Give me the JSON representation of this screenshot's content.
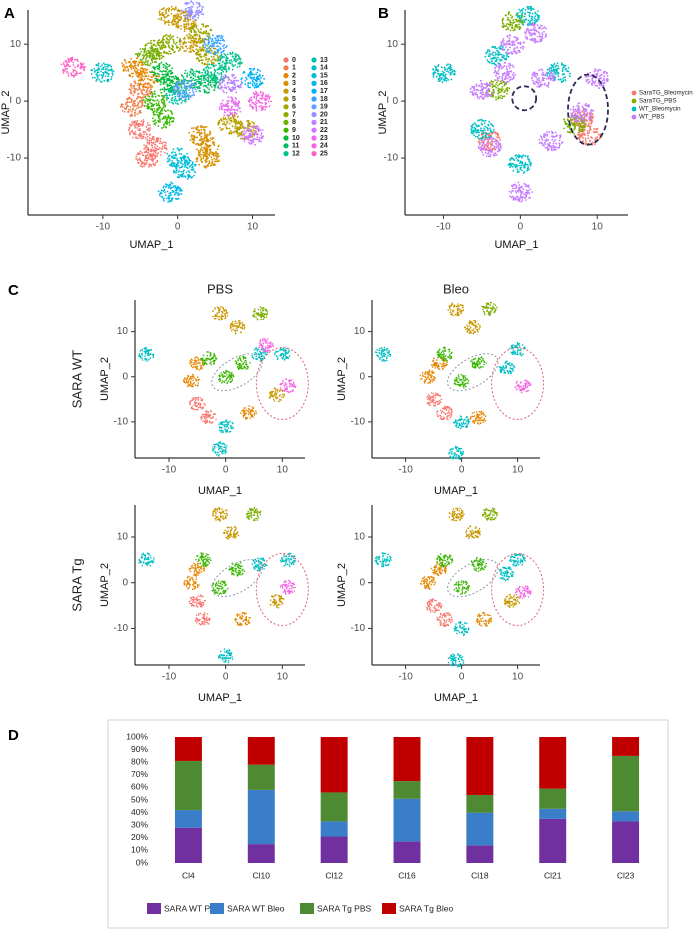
{
  "chart_data": [
    {
      "type": "scatter",
      "panel": "A",
      "xlabel": "UMAP_1",
      "ylabel": "UMAP_2",
      "xlim": [
        -20,
        13
      ],
      "ylim": [
        -20,
        16
      ],
      "xticks": [
        -10,
        0,
        10
      ],
      "yticks": [
        -10,
        0,
        10
      ],
      "legend": "right-columns",
      "series": [
        {
          "name": "0",
          "color": "#F8766D",
          "x": [
            -5,
            -3,
            -4
          ],
          "values": [
            -5,
            -8,
            -10
          ]
        },
        {
          "name": "1",
          "color": "#F07F49",
          "x": [
            -6,
            -5
          ],
          "values": [
            -1,
            2
          ]
        },
        {
          "name": "2",
          "color": "#E58700",
          "x": [
            -4,
            -6
          ],
          "values": [
            4,
            6
          ]
        },
        {
          "name": "3",
          "color": "#D89000",
          "x": [
            3,
            4,
            4
          ],
          "values": [
            -6,
            -8,
            -10
          ]
        },
        {
          "name": "4",
          "color": "#C99800",
          "x": [
            -1,
            1,
            2
          ],
          "values": [
            15,
            14,
            10
          ]
        },
        {
          "name": "5",
          "color": "#B79F00",
          "x": [
            7,
            9
          ],
          "values": [
            -4,
            -5
          ]
        },
        {
          "name": "6",
          "color": "#A3A500",
          "x": [
            3,
            4
          ],
          "values": [
            12,
            8
          ]
        },
        {
          "name": "7",
          "color": "#8BAB00",
          "x": [
            -3,
            -1
          ],
          "values": [
            9,
            10
          ]
        },
        {
          "name": "8",
          "color": "#6BB100",
          "x": [
            -4
          ],
          "values": [
            8
          ]
        },
        {
          "name": "9",
          "color": "#39B600",
          "x": [
            -3,
            -2
          ],
          "values": [
            0,
            -3
          ]
        },
        {
          "name": "10",
          "color": "#00BA38",
          "x": [
            -2,
            -1
          ],
          "values": [
            5,
            3
          ]
        },
        {
          "name": "11",
          "color": "#00BE67",
          "x": [
            2,
            4
          ],
          "values": [
            4,
            3
          ]
        },
        {
          "name": "12",
          "color": "#00C08B",
          "x": [
            5,
            7
          ],
          "values": [
            5,
            7
          ]
        },
        {
          "name": "13",
          "color": "#00C1A7",
          "x": [
            0
          ],
          "values": [
            1
          ]
        },
        {
          "name": "14",
          "color": "#00BFC4",
          "x": [
            -10
          ],
          "values": [
            5
          ]
        },
        {
          "name": "15",
          "color": "#00BCD8",
          "x": [
            0,
            1
          ],
          "values": [
            -10,
            -12
          ]
        },
        {
          "name": "16",
          "color": "#00B8E7",
          "x": [
            -1
          ],
          "values": [
            -16
          ]
        },
        {
          "name": "17",
          "color": "#00B0F6",
          "x": [
            10
          ],
          "values": [
            4
          ]
        },
        {
          "name": "18",
          "color": "#35A2FF",
          "x": [
            5
          ],
          "values": [
            10
          ]
        },
        {
          "name": "19",
          "color": "#619CFF",
          "x": [
            1
          ],
          "values": [
            2
          ]
        },
        {
          "name": "20",
          "color": "#9590FF",
          "x": [
            2
          ],
          "values": [
            16
          ]
        },
        {
          "name": "21",
          "color": "#B983FF",
          "x": [
            7
          ],
          "values": [
            3
          ]
        },
        {
          "name": "22",
          "color": "#D277FF",
          "x": [
            10
          ],
          "values": [
            -6
          ]
        },
        {
          "name": "23",
          "color": "#E76BF3",
          "x": [
            7
          ],
          "values": [
            -1
          ]
        },
        {
          "name": "24",
          "color": "#F564E3",
          "x": [
            11
          ],
          "values": [
            0
          ]
        },
        {
          "name": "25",
          "color": "#FF61C3",
          "x": [
            -14
          ],
          "values": [
            6
          ]
        }
      ]
    },
    {
      "type": "scatter",
      "panel": "B",
      "xlabel": "UMAP_1",
      "ylabel": "UMAP_2",
      "xlim": [
        -15,
        14
      ],
      "ylim": [
        -20,
        16
      ],
      "xticks": [
        -10,
        0,
        10
      ],
      "yticks": [
        -10,
        0,
        10
      ],
      "legend": "right",
      "series": [
        {
          "name": "SaraTG_Bleomycin",
          "color": "#F8766D",
          "x": [
            -4,
            8,
            9
          ],
          "values": [
            -7,
            -3,
            -6
          ]
        },
        {
          "name": "SaraTG_PBS",
          "color": "#7CAE00",
          "x": [
            -3,
            7,
            -1
          ],
          "values": [
            2,
            -4,
            14
          ]
        },
        {
          "name": "WT_Bleomycin",
          "color": "#00BFC4",
          "x": [
            -5,
            -3,
            0,
            5,
            -10,
            1
          ],
          "values": [
            -5,
            8,
            -11,
            5,
            5,
            15
          ]
        },
        {
          "name": "WT_PBS",
          "color": "#C77CFF",
          "x": [
            -4,
            -5,
            -2,
            3,
            4,
            0,
            -1,
            8,
            10,
            2
          ],
          "values": [
            -8,
            2,
            5,
            4,
            -7,
            -16,
            10,
            -2,
            4,
            12
          ]
        }
      ]
    },
    {
      "type": "scatter",
      "panel": "C",
      "title": "PBS",
      "row_label": "SARA WT",
      "xlabel": "UMAP_1",
      "ylabel": "UMAP_2",
      "xlim": [
        -16,
        14
      ],
      "ylim": [
        -18,
        17
      ],
      "xticks": [
        -10,
        0,
        10
      ],
      "yticks": [
        -10,
        0,
        10
      ],
      "series": [
        {
          "color": "#F8766D",
          "x": [
            -5,
            -3
          ],
          "values": [
            -6,
            -9
          ]
        },
        {
          "color": "#E58700",
          "x": [
            -6,
            -5,
            4
          ],
          "values": [
            -1,
            3,
            -8
          ]
        },
        {
          "color": "#39B600",
          "x": [
            -3,
            0,
            3
          ],
          "values": [
            4,
            0,
            3
          ]
        },
        {
          "color": "#C99800",
          "x": [
            -1,
            2,
            9
          ],
          "values": [
            14,
            11,
            -4
          ]
        },
        {
          "color": "#00BFC4",
          "x": [
            -14,
            6,
            10,
            0,
            -1
          ],
          "values": [
            5,
            5,
            5,
            -11,
            -16
          ]
        },
        {
          "color": "#F564E3",
          "x": [
            11,
            7
          ],
          "values": [
            -2,
            7
          ]
        },
        {
          "color": "#7CAE00",
          "x": [
            6
          ],
          "values": [
            14
          ]
        }
      ]
    },
    {
      "type": "scatter",
      "title": "Bleo",
      "xlabel": "UMAP_1",
      "ylabel": "UMAP_2",
      "xlim": [
        -16,
        14
      ],
      "ylim": [
        -18,
        17
      ],
      "xticks": [
        -10,
        0,
        10
      ],
      "yticks": [
        -10,
        0,
        10
      ],
      "series": [
        {
          "color": "#F8766D",
          "x": [
            -5,
            -3
          ],
          "values": [
            -5,
            -8
          ]
        },
        {
          "color": "#E58700",
          "x": [
            -6,
            -4,
            3
          ],
          "values": [
            0,
            3,
            -9
          ]
        },
        {
          "color": "#39B600",
          "x": [
            -3,
            0,
            3
          ],
          "values": [
            5,
            -1,
            3
          ]
        },
        {
          "color": "#C99800",
          "x": [
            -1,
            2
          ],
          "values": [
            15,
            11
          ]
        },
        {
          "color": "#00BFC4",
          "x": [
            -14,
            8,
            10,
            0,
            -1
          ],
          "values": [
            5,
            2,
            6,
            -10,
            -17
          ]
        },
        {
          "color": "#F564E3",
          "x": [
            11
          ],
          "values": [
            -2
          ]
        },
        {
          "color": "#7CAE00",
          "x": [
            5
          ],
          "values": [
            15
          ]
        }
      ]
    },
    {
      "type": "scatter",
      "row_label": "SARA Tg",
      "xlabel": "UMAP_1",
      "ylabel": "UMAP_2",
      "xlim": [
        -16,
        14
      ],
      "ylim": [
        -18,
        17
      ],
      "xticks": [
        -10,
        0,
        10
      ],
      "yticks": [
        -10,
        0,
        10
      ],
      "series": [
        {
          "color": "#F8766D",
          "x": [
            -5,
            -4
          ],
          "values": [
            -4,
            -8
          ]
        },
        {
          "color": "#E58700",
          "x": [
            -6,
            -5,
            3
          ],
          "values": [
            0,
            3,
            -8
          ]
        },
        {
          "color": "#39B600",
          "x": [
            -4,
            -1,
            2
          ],
          "values": [
            5,
            -1,
            3
          ]
        },
        {
          "color": "#C99800",
          "x": [
            -1,
            1,
            9
          ],
          "values": [
            15,
            11,
            -4
          ]
        },
        {
          "color": "#00BFC4",
          "x": [
            -14,
            6,
            11,
            0
          ],
          "values": [
            5,
            4,
            5,
            -16
          ]
        },
        {
          "color": "#F564E3",
          "x": [
            11
          ],
          "values": [
            -1
          ]
        },
        {
          "color": "#7CAE00",
          "x": [
            5
          ],
          "values": [
            15
          ]
        }
      ]
    },
    {
      "type": "scatter",
      "xlabel": "UMAP_1",
      "ylabel": "UMAP_2",
      "xlim": [
        -16,
        14
      ],
      "ylim": [
        -18,
        17
      ],
      "xticks": [
        -10,
        0,
        10
      ],
      "yticks": [
        -10,
        0,
        10
      ],
      "series": [
        {
          "color": "#F8766D",
          "x": [
            -5,
            -3
          ],
          "values": [
            -5,
            -8
          ]
        },
        {
          "color": "#E58700",
          "x": [
            -6,
            -4,
            4
          ],
          "values": [
            0,
            3,
            -8
          ]
        },
        {
          "color": "#39B600",
          "x": [
            -3,
            0,
            3
          ],
          "values": [
            5,
            -1,
            4
          ]
        },
        {
          "color": "#C99800",
          "x": [
            -1,
            2,
            9
          ],
          "values": [
            15,
            11,
            -4
          ]
        },
        {
          "color": "#00BFC4",
          "x": [
            -14,
            8,
            10,
            0,
            -1
          ],
          "values": [
            5,
            2,
            5,
            -10,
            -17
          ]
        },
        {
          "color": "#F564E3",
          "x": [
            11
          ],
          "values": [
            -2
          ]
        },
        {
          "color": "#7CAE00",
          "x": [
            5
          ],
          "values": [
            15
          ]
        }
      ]
    },
    {
      "type": "stacked_bar",
      "panel": "D",
      "categories": [
        "Cl4",
        "Cl10",
        "Cl12",
        "Cl16",
        "Cl18",
        "Cl21",
        "Cl23"
      ],
      "ylim": [
        0,
        100
      ],
      "yticks": [
        {
          "value": 0,
          "label": "0%"
        },
        {
          "value": 10,
          "label": "10%"
        },
        {
          "value": 20,
          "label": "20%"
        },
        {
          "value": 30,
          "label": "30%"
        },
        {
          "value": 40,
          "label": "40%"
        },
        {
          "value": 50,
          "label": "50%"
        },
        {
          "value": 60,
          "label": "60%"
        },
        {
          "value": 70,
          "label": "70%"
        },
        {
          "value": 80,
          "label": "80%"
        },
        {
          "value": 90,
          "label": "90%"
        },
        {
          "value": 100,
          "label": "100%"
        }
      ],
      "legend": "bottom",
      "series": [
        {
          "name": "SARA WT PBS",
          "color": "#7030A0",
          "values": [
            28,
            15,
            21,
            17,
            14,
            35,
            33
          ]
        },
        {
          "name": "SARA WT Bleo",
          "color": "#3A7DC9",
          "values": [
            14,
            43,
            12,
            34,
            26,
            8,
            8
          ]
        },
        {
          "name": "SARA Tg PBS",
          "color": "#4E8A32",
          "values": [
            39,
            20,
            23,
            14,
            14,
            16,
            44
          ]
        },
        {
          "name": "SARA Tg Bleo",
          "color": "#C00000",
          "values": [
            19,
            22,
            44,
            35,
            46,
            41,
            15
          ]
        }
      ]
    }
  ]
}
